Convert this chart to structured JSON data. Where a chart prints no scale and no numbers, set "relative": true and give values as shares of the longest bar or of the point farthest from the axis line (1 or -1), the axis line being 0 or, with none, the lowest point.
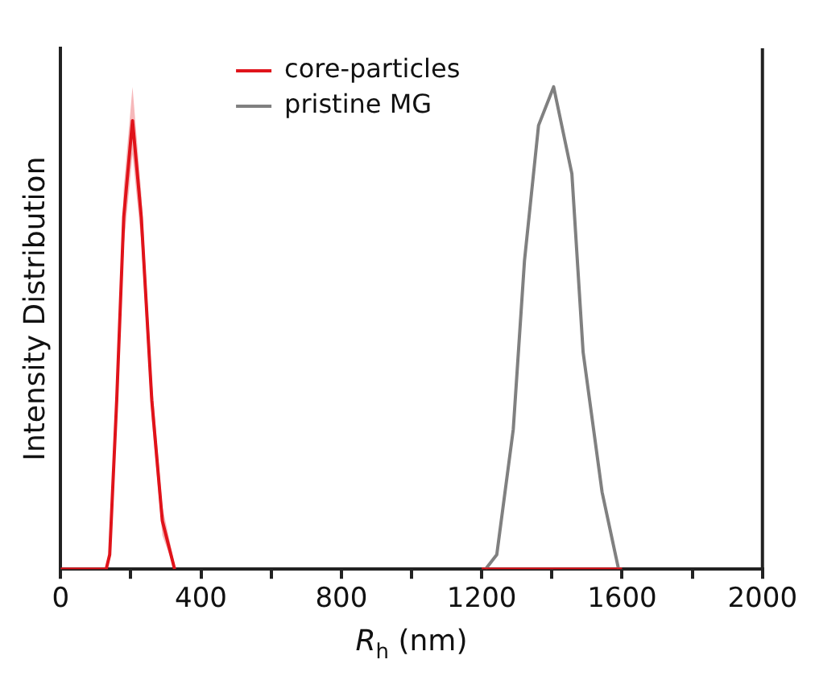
{
  "chart_data": {
    "type": "line",
    "xlabel": "R$_{h}$ (nm)",
    "ylabel": "Intensity Distribution",
    "relative": true,
    "tick_labels": "x",
    "legend": "top",
    "grid": false,
    "marker": "none",
    "line_style": "solid",
    "xlim": [
      0,
      2000
    ],
    "xticks": [
      0,
      {
        "value": 200,
        "label": null
      },
      400,
      {
        "value": 600,
        "label": null
      },
      800,
      {
        "value": 1000,
        "label": null
      },
      1200,
      {
        "value": 1400,
        "label": null
      },
      1600,
      {
        "value": 1800,
        "label": null
      },
      2000
    ],
    "series": [
      {
        "name": "core-particles",
        "color": "#e0141b",
        "x": [
          0,
          130,
          140,
          160,
          180,
          205,
          230,
          260,
          290,
          325,
          340,
          1200,
          1600
        ],
        "values": [
          0,
          0,
          0.03,
          0.35,
          0.73,
          0.93,
          0.73,
          0.35,
          0.1,
          0,
          null,
          0,
          0
        ],
        "lower": [
          0,
          0,
          0.02,
          0.32,
          0.67,
          0.86,
          0.68,
          0.31,
          0.07,
          0,
          null,
          null,
          null
        ],
        "upper": [
          0,
          0,
          0.04,
          0.38,
          0.79,
          1.0,
          0.78,
          0.39,
          0.13,
          0.01,
          null,
          null,
          null
        ]
      },
      {
        "name": "pristine MG",
        "color": "#808080",
        "x": [
          1211,
          1243,
          1290,
          1322,
          1362,
          1405,
          1457,
          1489,
          1543,
          1590
        ],
        "values": [
          0,
          0.03,
          0.29,
          0.64,
          0.92,
          1.0,
          0.82,
          0.45,
          0.16,
          0
        ]
      }
    ]
  }
}
